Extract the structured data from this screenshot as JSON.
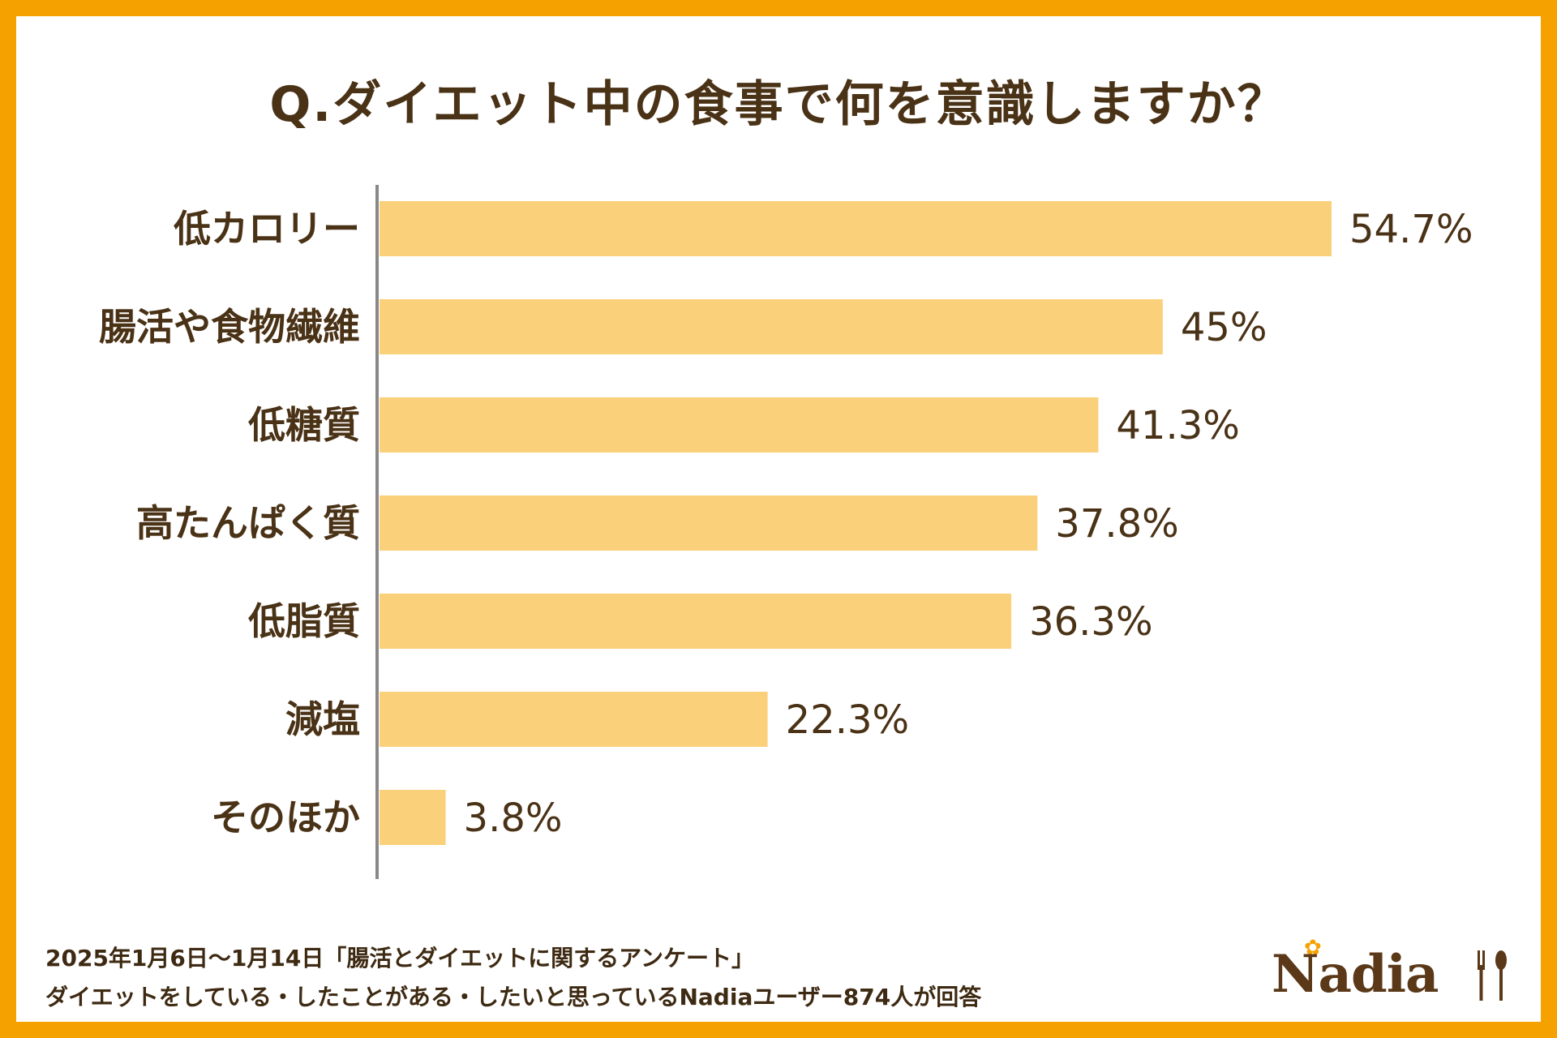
{
  "title": "Q.ダイエット中の食事で何を意識しますか？",
  "colors": {
    "frame": "#F5A200",
    "bar": "#FAD07A",
    "text": "#4A3216",
    "axis": "#888888"
  },
  "chart_data": {
    "type": "bar",
    "orientation": "horizontal",
    "title": "Q.ダイエット中の食事で何を意識しますか？",
    "categories": [
      "低カロリー",
      "腸活や食物繊維",
      "低糖質",
      "高たんぱく質",
      "低脂質",
      "減塩",
      "そのほか"
    ],
    "values": [
      54.7,
      45,
      41.3,
      37.8,
      36.3,
      22.3,
      3.8
    ],
    "value_labels": [
      "54.7%",
      "45%",
      "41.3%",
      "37.8%",
      "36.3%",
      "22.3%",
      "3.8%"
    ],
    "unit": "%",
    "xlim": [
      0,
      54.7
    ],
    "xlabel": "",
    "ylabel": ""
  },
  "footnote": {
    "line1": "2025年1月6日〜1月14日「腸活とダイエットに関するアンケート」",
    "line2": "ダイエットをしている・したことがある・したいと思っているNadiaユーザー874人が回答"
  },
  "logo": {
    "text": "Nadia",
    "icon": "fork-spoon-icon"
  }
}
